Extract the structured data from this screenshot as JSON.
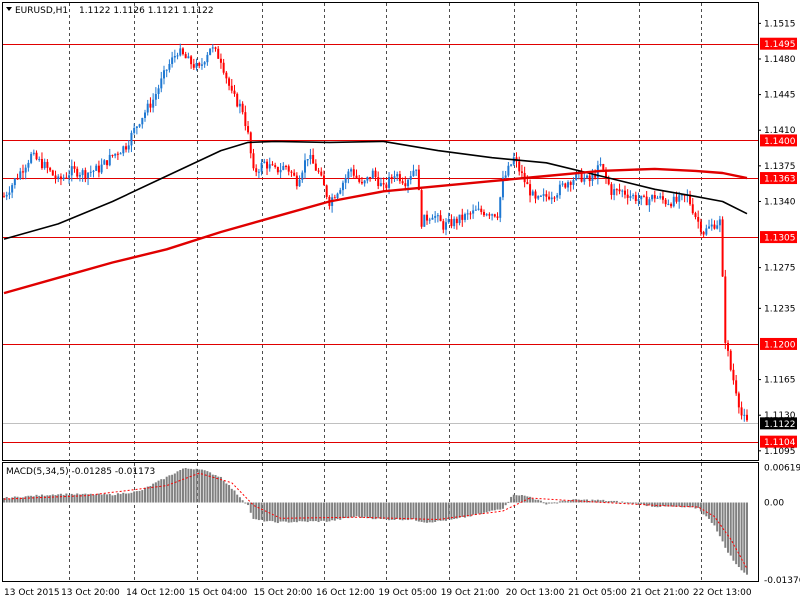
{
  "header": {
    "symbol": "EURUSD,H1",
    "ohlc": "1.1122 1.1126 1.1121 1.1122"
  },
  "macd_panel": {
    "label": "MACD(5,34,5) -0.01285 -0.01173"
  },
  "colors": {
    "bull": "#1e78d2",
    "bear": "#ff0000",
    "level_line": "#e00000",
    "level_badge": "#ff0000",
    "ma_fast": "#e00000",
    "ma_slow": "#000000",
    "macd_bar": "#808080",
    "macd_signal": "#ff0000",
    "price_badge": "#000000",
    "grid": "#000000"
  },
  "chart_data": [
    {
      "type": "candlestick",
      "ylim": [
        1.1085,
        1.1535
      ],
      "grid": "dashed-vertical",
      "price_ticks": [
        "1.1515",
        "1.1480",
        "1.1445",
        "1.1410",
        "1.1375",
        "1.1340",
        "1.1275",
        "1.1235",
        "1.1165",
        "1.1130",
        "1.1095"
      ],
      "time_ticks": [
        "13 Oct 2015",
        "13 Oct 20:00",
        "14 Oct 12:00",
        "15 Oct 04:00",
        "15 Oct 20:00",
        "16 Oct 12:00",
        "19 Oct 05:00",
        "19 Oct 21:00",
        "20 Oct 13:00",
        "21 Oct 05:00",
        "21 Oct 21:00",
        "22 Oct 13:00"
      ],
      "levels": [
        {
          "value": 1.1495,
          "label": "1.1495"
        },
        {
          "value": 1.14,
          "label": "1.1400"
        },
        {
          "value": 1.1363,
          "label": "1.1363"
        },
        {
          "value": 1.1305,
          "label": "1.1305"
        },
        {
          "value": 1.12,
          "label": "1.1200"
        },
        {
          "value": 1.1104,
          "label": "1.1104"
        }
      ],
      "current_price": {
        "value": 1.1122,
        "label": "1.1122"
      },
      "close_path": [
        [
          0,
          1.1345
        ],
        [
          5,
          1.1365
        ],
        [
          10,
          1.1385
        ],
        [
          15,
          1.1375
        ],
        [
          20,
          1.136
        ],
        [
          25,
          1.137
        ],
        [
          30,
          1.1368
        ],
        [
          35,
          1.1372
        ],
        [
          40,
          1.1385
        ],
        [
          45,
          1.1395
        ],
        [
          50,
          1.142
        ],
        [
          55,
          1.144
        ],
        [
          60,
          1.147
        ],
        [
          64,
          1.1488
        ],
        [
          68,
          1.1478
        ],
        [
          72,
          1.147
        ],
        [
          76,
          1.1492
        ],
        [
          80,
          1.148
        ],
        [
          84,
          1.1445
        ],
        [
          88,
          1.143
        ],
        [
          90,
          1.1405
        ],
        [
          92,
          1.1368
        ],
        [
          96,
          1.1378
        ],
        [
          100,
          1.137
        ],
        [
          104,
          1.1375
        ],
        [
          108,
          1.136
        ],
        [
          112,
          1.1385
        ],
        [
          116,
          1.1368
        ],
        [
          120,
          1.134
        ],
        [
          124,
          1.1355
        ],
        [
          128,
          1.1372
        ],
        [
          132,
          1.1355
        ],
        [
          136,
          1.1368
        ],
        [
          140,
          1.1352
        ],
        [
          144,
          1.1368
        ],
        [
          148,
          1.136
        ],
        [
          152,
          1.1375
        ],
        [
          154,
          1.132
        ],
        [
          158,
          1.1328
        ],
        [
          162,
          1.1316
        ],
        [
          166,
          1.132
        ],
        [
          170,
          1.1325
        ],
        [
          174,
          1.133
        ],
        [
          178,
          1.133
        ],
        [
          182,
          1.1328
        ],
        [
          184,
          1.136
        ],
        [
          188,
          1.1382
        ],
        [
          192,
          1.136
        ],
        [
          196,
          1.134
        ],
        [
          200,
          1.1345
        ],
        [
          204,
          1.135
        ],
        [
          208,
          1.136
        ],
        [
          212,
          1.1365
        ],
        [
          216,
          1.136
        ],
        [
          220,
          1.1375
        ],
        [
          224,
          1.135
        ],
        [
          228,
          1.135
        ],
        [
          232,
          1.1345
        ],
        [
          236,
          1.134
        ],
        [
          240,
          1.1345
        ],
        [
          244,
          1.134
        ],
        [
          248,
          1.134
        ],
        [
          252,
          1.1345
        ],
        [
          256,
          1.132
        ],
        [
          258,
          1.131
        ],
        [
          262,
          1.1318
        ],
        [
          264,
          1.132
        ],
        [
          266,
          1.1205
        ],
        [
          268,
          1.1175
        ],
        [
          270,
          1.1155
        ],
        [
          272,
          1.113
        ],
        [
          274,
          1.1122
        ]
      ],
      "ma_fast": [
        [
          0,
          1.125
        ],
        [
          20,
          1.1265
        ],
        [
          40,
          1.128
        ],
        [
          60,
          1.1293
        ],
        [
          80,
          1.131
        ],
        [
          100,
          1.1325
        ],
        [
          120,
          1.134
        ],
        [
          140,
          1.135
        ],
        [
          160,
          1.1355
        ],
        [
          180,
          1.136
        ],
        [
          200,
          1.1365
        ],
        [
          220,
          1.137
        ],
        [
          240,
          1.1372
        ],
        [
          255,
          1.137
        ],
        [
          265,
          1.1368
        ],
        [
          274,
          1.1363
        ]
      ],
      "ma_slow": [
        [
          0,
          1.1303
        ],
        [
          20,
          1.1318
        ],
        [
          40,
          1.134
        ],
        [
          60,
          1.1365
        ],
        [
          80,
          1.139
        ],
        [
          90,
          1.1398
        ],
        [
          100,
          1.1399
        ],
        [
          120,
          1.1398
        ],
        [
          140,
          1.1399
        ],
        [
          160,
          1.139
        ],
        [
          180,
          1.1383
        ],
        [
          200,
          1.1378
        ],
        [
          220,
          1.1365
        ],
        [
          240,
          1.1352
        ],
        [
          255,
          1.1345
        ],
        [
          265,
          1.134
        ],
        [
          274,
          1.1328
        ]
      ]
    },
    {
      "type": "bar",
      "name": "MACD(5,34,5)",
      "ylim": [
        -0.0139,
        0.007
      ],
      "ticks": [
        "0.00619",
        "0.00",
        "-0.01376"
      ],
      "macd_path": [
        [
          0,
          0.0008
        ],
        [
          20,
          0.0015
        ],
        [
          40,
          0.0014
        ],
        [
          50,
          0.002
        ],
        [
          60,
          0.0045
        ],
        [
          66,
          0.006
        ],
        [
          72,
          0.006
        ],
        [
          80,
          0.0045
        ],
        [
          84,
          0.0025
        ],
        [
          90,
          -0.0005
        ],
        [
          92,
          -0.003
        ],
        [
          100,
          -0.0035
        ],
        [
          110,
          -0.0034
        ],
        [
          120,
          -0.0033
        ],
        [
          130,
          -0.0025
        ],
        [
          140,
          -0.003
        ],
        [
          150,
          -0.003
        ],
        [
          156,
          -0.0035
        ],
        [
          166,
          -0.003
        ],
        [
          176,
          -0.002
        ],
        [
          184,
          -0.001
        ],
        [
          188,
          0.0015
        ],
        [
          194,
          0.001
        ],
        [
          200,
          -0.0002
        ],
        [
          210,
          0.0005
        ],
        [
          220,
          0.0004
        ],
        [
          230,
          0.0
        ],
        [
          240,
          -0.0007
        ],
        [
          248,
          -0.0008
        ],
        [
          256,
          -0.001
        ],
        [
          262,
          -0.004
        ],
        [
          266,
          -0.008
        ],
        [
          270,
          -0.011
        ],
        [
          274,
          -0.0128
        ]
      ],
      "signal_path": [
        [
          0,
          0.0006
        ],
        [
          30,
          0.0012
        ],
        [
          60,
          0.003
        ],
        [
          72,
          0.0052
        ],
        [
          84,
          0.0035
        ],
        [
          92,
          -0.0005
        ],
        [
          102,
          -0.0028
        ],
        [
          130,
          -0.0026
        ],
        [
          160,
          -0.003
        ],
        [
          184,
          -0.0015
        ],
        [
          194,
          0.0008
        ],
        [
          210,
          0.0003
        ],
        [
          240,
          -0.0005
        ],
        [
          256,
          -0.0008
        ],
        [
          262,
          -0.0025
        ],
        [
          268,
          -0.0065
        ],
        [
          274,
          -0.0117
        ]
      ]
    }
  ]
}
